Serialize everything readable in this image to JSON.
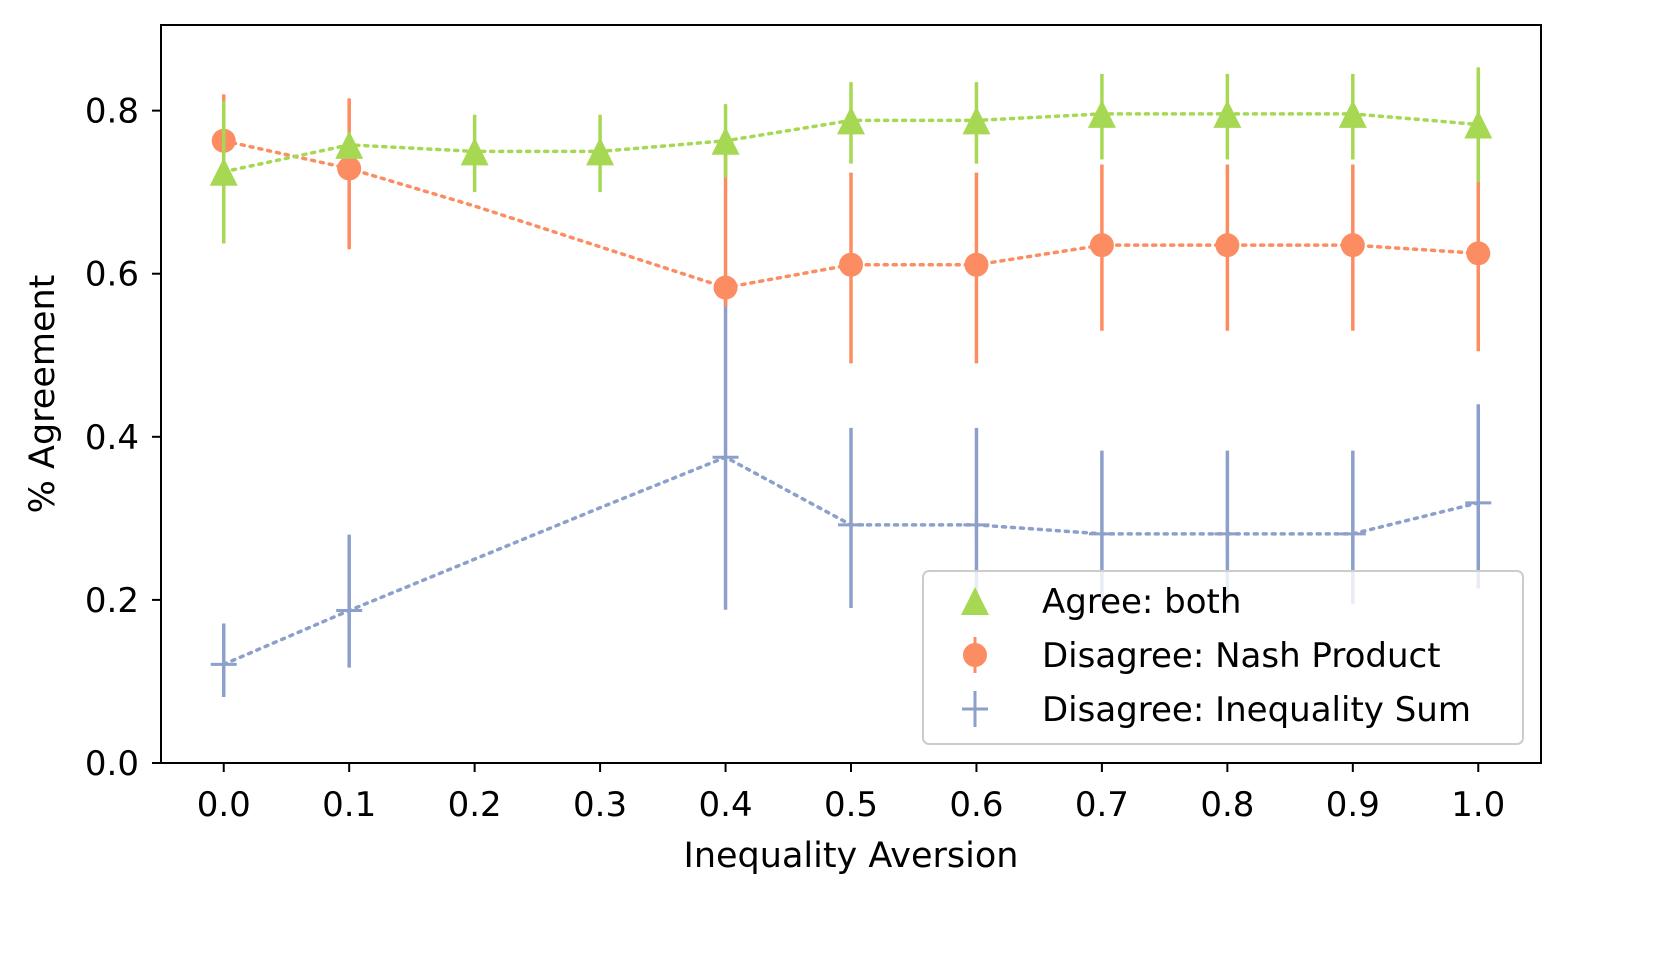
{
  "chart_data": {
    "type": "line",
    "title": "",
    "xlabel": "Inequality Aversion",
    "ylabel": "% Agreement",
    "x": [
      0.0,
      0.1,
      0.2,
      0.3,
      0.4,
      0.5,
      0.6,
      0.7,
      0.8,
      0.9,
      1.0
    ],
    "x_tick_labels": [
      "0.0",
      "0.1",
      "0.2",
      "0.3",
      "0.4",
      "0.5",
      "0.6",
      "0.7",
      "0.8",
      "0.9",
      "1.0"
    ],
    "y_ticks": [
      0.0,
      0.2,
      0.4,
      0.6,
      0.8
    ],
    "y_tick_labels": [
      "0.0",
      "0.2",
      "0.4",
      "0.6",
      "0.8"
    ],
    "xlim": [
      -0.05,
      1.05
    ],
    "ylim": [
      0.0,
      0.905
    ],
    "grid": false,
    "legend_position": "lower-right",
    "series": [
      {
        "name": "Agree: both",
        "color": "#a6d854",
        "marker": "triangle",
        "linestyle": "dotted",
        "values": [
          0.725,
          0.758,
          0.75,
          0.75,
          0.763,
          0.788,
          0.788,
          0.796,
          0.796,
          0.796,
          0.783
        ],
        "err_low": [
          0.637,
          0.742,
          0.7,
          0.7,
          0.718,
          0.735,
          0.735,
          0.74,
          0.74,
          0.74,
          0.712
        ],
        "err_high": [
          0.812,
          0.773,
          0.795,
          0.795,
          0.808,
          0.835,
          0.835,
          0.845,
          0.845,
          0.845,
          0.853
        ]
      },
      {
        "name": "Disagree: Nash Product",
        "color": "#fc8d62",
        "marker": "circle",
        "linestyle": "dotted",
        "values": [
          0.763,
          0.729,
          0.683,
          0.633,
          0.583,
          0.611,
          0.611,
          0.635,
          0.635,
          0.635,
          0.625
        ],
        "err_low": [
          0.7,
          0.63,
          null,
          null,
          0.56,
          0.49,
          0.49,
          0.53,
          0.53,
          0.53,
          0.505
        ],
        "err_high": [
          0.82,
          0.815,
          null,
          null,
          0.755,
          0.724,
          0.724,
          0.734,
          0.734,
          0.734,
          0.737
        ],
        "marker_shown": [
          true,
          true,
          false,
          false,
          true,
          true,
          true,
          true,
          true,
          true,
          true
        ]
      },
      {
        "name": "Disagree: Inequality Sum",
        "color": "#8da0cb",
        "marker": "plus",
        "linestyle": "dotted",
        "values": [
          0.121,
          0.187,
          0.25,
          0.313,
          0.375,
          0.292,
          0.292,
          0.281,
          0.281,
          0.281,
          0.319
        ],
        "err_low": [
          0.081,
          0.117,
          null,
          null,
          0.188,
          0.19,
          0.19,
          0.195,
          0.195,
          0.195,
          0.214
        ],
        "err_high": [
          0.171,
          0.28,
          null,
          null,
          0.575,
          0.411,
          0.411,
          0.383,
          0.383,
          0.383,
          0.44
        ],
        "marker_shown": [
          true,
          true,
          false,
          false,
          true,
          true,
          true,
          true,
          true,
          true,
          true
        ]
      }
    ]
  }
}
